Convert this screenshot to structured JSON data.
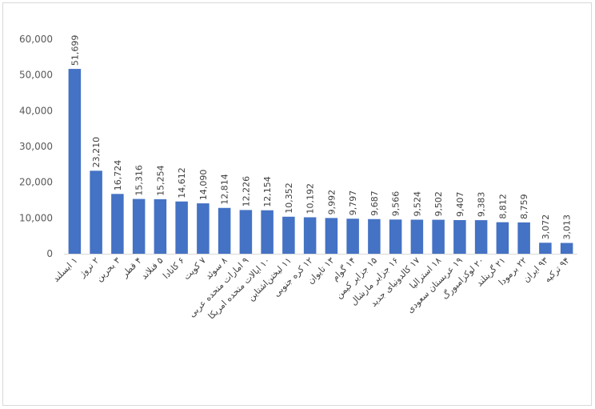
{
  "chart_data": {
    "type": "bar",
    "title": "",
    "xlabel": "",
    "ylabel": "",
    "ylim": [
      0,
      60000
    ],
    "yticks": [
      "0",
      "10,000",
      "20,000",
      "30,000",
      "40,000",
      "50,000",
      "60,000"
    ],
    "grid": false,
    "legend": "none",
    "bar_color": "#4472c4",
    "categories": [
      {
        "rank": "۱",
        "name": "ایسلند"
      },
      {
        "rank": "۲",
        "name": "نروژ"
      },
      {
        "rank": "۳",
        "name": "بحرین"
      },
      {
        "rank": "۴",
        "name": "قطر"
      },
      {
        "rank": "۵",
        "name": "فنلاند"
      },
      {
        "rank": "۶",
        "name": "کانادا"
      },
      {
        "rank": "۷",
        "name": "کویت"
      },
      {
        "rank": "۸",
        "name": "سوئد"
      },
      {
        "rank": "۹",
        "name": "امارات متحده عربی"
      },
      {
        "rank": "۱۰",
        "name": "ایالات متحده امریکا"
      },
      {
        "rank": "۱۱",
        "name": "لیختن‌اشتاین"
      },
      {
        "rank": "۱۲",
        "name": "کره جنوبی"
      },
      {
        "rank": "۱۳",
        "name": "تایوان"
      },
      {
        "rank": "۱۴",
        "name": "گوام"
      },
      {
        "rank": "۱۵",
        "name": "جزایر کیمن"
      },
      {
        "rank": "۱۶",
        "name": "جزایر مارشال"
      },
      {
        "rank": "۱۷",
        "name": "کالدونیای جدید"
      },
      {
        "rank": "۱۸",
        "name": "استرالیا"
      },
      {
        "rank": "۱۹",
        "name": "عربستان سعودی"
      },
      {
        "rank": "۲۰",
        "name": "لوکزامبورگ"
      },
      {
        "rank": "۲۱",
        "name": "گرینلند"
      },
      {
        "rank": "۲۲",
        "name": "برمودا"
      },
      {
        "rank": "۹۳",
        "name": "ایران"
      },
      {
        "rank": "۹۴",
        "name": "ترکیه"
      }
    ],
    "values": [
      51699,
      23210,
      16724,
      15316,
      15254,
      14612,
      14090,
      12814,
      12226,
      12154,
      10352,
      10192,
      9992,
      9797,
      9687,
      9566,
      9524,
      9502,
      9407,
      9383,
      8812,
      8759,
      3072,
      3013
    ],
    "labels": [
      "51,699",
      "23,210",
      "16,724",
      "15,316",
      "15,254",
      "14,612",
      "14,090",
      "12,814",
      "12,226",
      "12,154",
      "10,352",
      "10,192",
      "9,992",
      "9,797",
      "9,687",
      "9,566",
      "9,524",
      "9,502",
      "9,407",
      "9,383",
      "8,812",
      "8,759",
      "3,072",
      "3,013"
    ]
  }
}
